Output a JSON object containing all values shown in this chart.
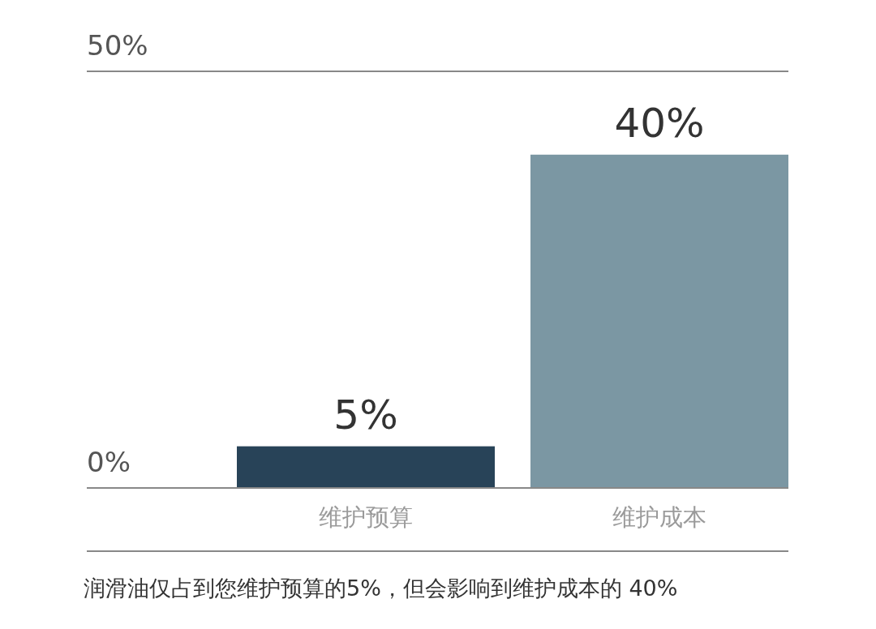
{
  "chart_data": {
    "type": "bar",
    "categories": [
      "维护预算",
      "维护成本"
    ],
    "values": [
      5,
      40
    ],
    "colors": [
      "#284358",
      "#7b97a3"
    ],
    "value_labels": [
      "5%",
      "40%"
    ],
    "ylim": [
      0,
      50
    ],
    "yticks": [
      {
        "value": 0,
        "label": "0%"
      },
      {
        "value": 50,
        "label": "50%"
      }
    ],
    "ref_lines": [
      {
        "axis": "y",
        "value": 50,
        "color": "#888888"
      }
    ],
    "annotations": [
      "润滑油仅占到您维护预算的5%，但会影响到维护成本的 40%"
    ]
  }
}
